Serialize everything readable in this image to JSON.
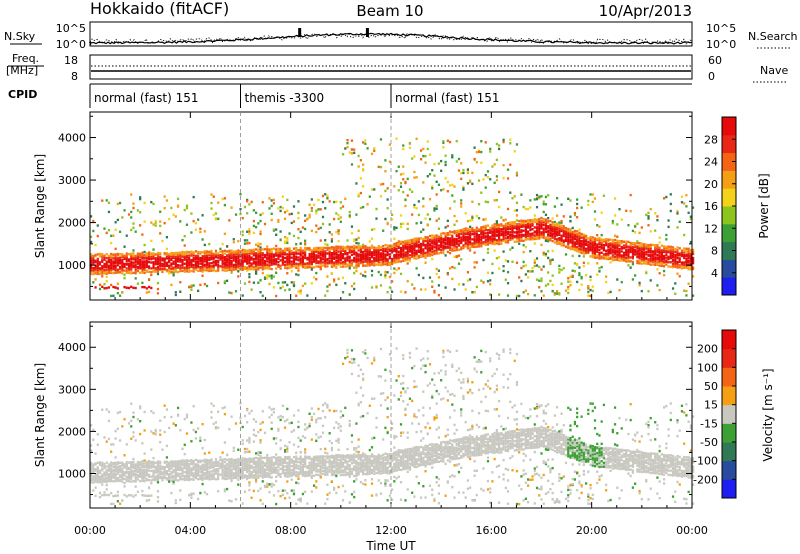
{
  "header": {
    "station": "Hokkaido (fitACF)",
    "beam": "Beam 10",
    "date": "10/Apr/2013"
  },
  "strip_panels": {
    "nsky_label": "N.Sky",
    "nsky_ticks": [
      "10^5",
      "10^0"
    ],
    "nsearch_label": "N.Search",
    "freq_label_1": "Freq.",
    "freq_label_2": "[MHz]",
    "freq_ticks": [
      "18",
      "8"
    ],
    "nave_ticks": [
      "60",
      "0"
    ],
    "nave_label": "Nave",
    "cpid_label": "CPID",
    "cpid_modes": [
      {
        "label": "normal (fast) 151",
        "start_hour": 0,
        "end_hour": 6
      },
      {
        "label": "themis -3300",
        "start_hour": 6,
        "end_hour": 12
      },
      {
        "label": "normal (fast) 151",
        "start_hour": 12,
        "end_hour": 24
      }
    ]
  },
  "chart_data": [
    {
      "type": "heatmap",
      "title": "",
      "xlabel": "",
      "ylabel": "Slant Range [km]",
      "x_range_hours": [
        0,
        24
      ],
      "ylim": [
        180,
        4600
      ],
      "y_ticks": [
        1000,
        2000,
        3000,
        4000
      ],
      "colorbar": {
        "label": "Power [dB]",
        "ticks": [
          "4",
          "8",
          "12",
          "16",
          "20",
          "24",
          "28"
        ],
        "colors": [
          "#1e1ef0",
          "#284ba0",
          "#2f7a55",
          "#3da035",
          "#8ec41e",
          "#f5d21a",
          "#f5a014",
          "#f56414",
          "#e82814",
          "#e60a0a"
        ]
      }
    },
    {
      "type": "heatmap",
      "title": "",
      "xlabel": "Time UT",
      "ylabel": "Slant Range [km]",
      "x_range_hours": [
        0,
        24
      ],
      "x_tick_labels": [
        "00:00",
        "04:00",
        "08:00",
        "12:00",
        "16:00",
        "20:00",
        "00:00"
      ],
      "ylim": [
        180,
        4600
      ],
      "y_ticks": [
        1000,
        2000,
        3000,
        4000
      ],
      "colorbar": {
        "label": "Velocity [m s⁻¹]",
        "ticks": [
          "200",
          "100",
          "50",
          "15",
          "-15",
          "-50",
          "-100",
          "-200"
        ],
        "colors": [
          "#1e1ef0",
          "#284ba0",
          "#2f7a55",
          "#3da035",
          "#c8c8c0",
          "#f5a014",
          "#f56414",
          "#e82814",
          "#e60a0a"
        ]
      }
    }
  ]
}
